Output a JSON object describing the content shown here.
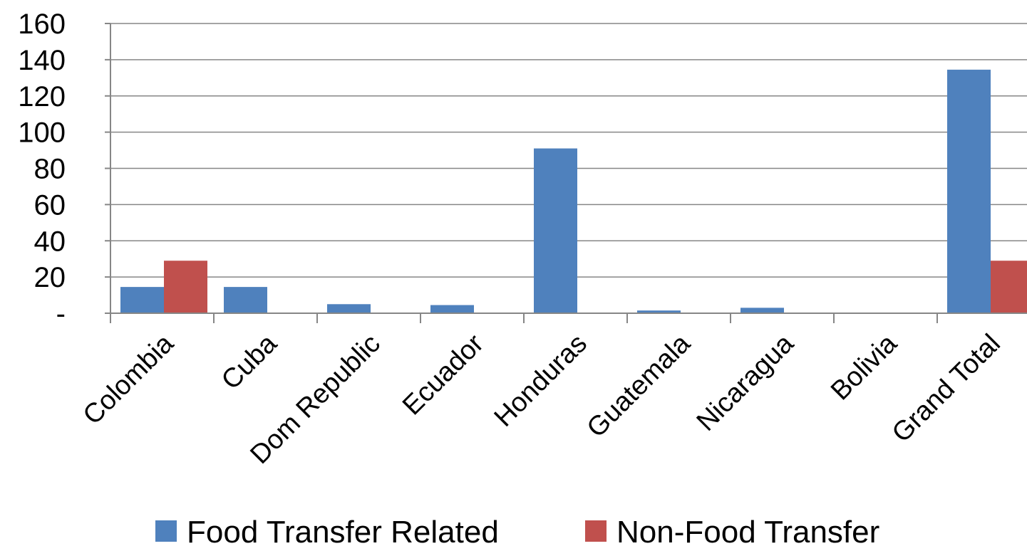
{
  "chart_data": {
    "type": "bar",
    "categories": [
      "Colombia",
      "Cuba",
      "Dom Republic",
      "Ecuador",
      "Honduras",
      "Guatemala",
      "Nicaragua",
      "Bolivia",
      "Grand Total"
    ],
    "series": [
      {
        "name": "Food Transfer Related",
        "color": "#4F81BD",
        "values": [
          14.5,
          14.5,
          5,
          4.5,
          91,
          1.5,
          3,
          0,
          134.5
        ]
      },
      {
        "name": "Non-Food Transfer",
        "color": "#C0504D",
        "values": [
          29,
          0,
          0,
          0,
          0,
          0,
          0,
          0,
          29
        ]
      }
    ],
    "ylim": [
      0,
      160
    ],
    "yticks": [
      0,
      20,
      40,
      60,
      80,
      100,
      120,
      140,
      160
    ],
    "ytick_labels": [
      "-",
      "20",
      "40",
      "60",
      "80",
      "100",
      "120",
      "140",
      "160"
    ],
    "grid": true,
    "legend_position": "bottom",
    "title": "",
    "xlabel": "",
    "ylabel": ""
  }
}
